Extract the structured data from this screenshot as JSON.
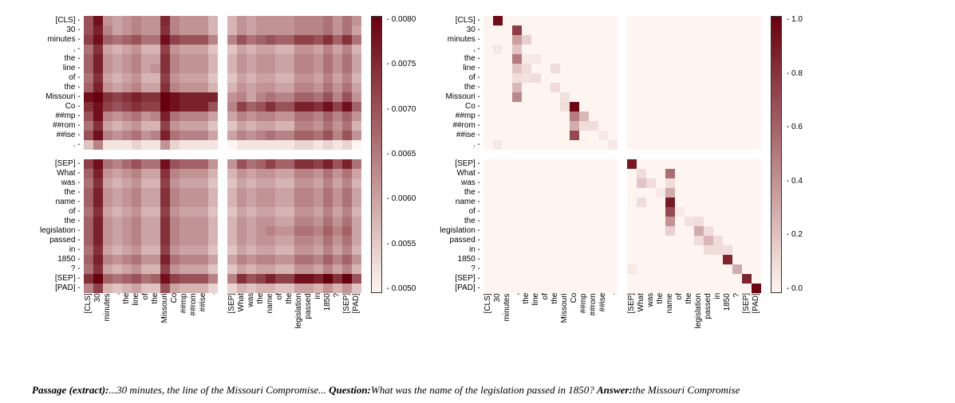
{
  "tokens": [
    "[CLS]",
    "30",
    "minutes",
    ",",
    "the",
    "line",
    "of",
    "the",
    "Missouri",
    "Co",
    "##mp",
    "##rom",
    "##ise",
    ".",
    "[SEP]",
    "What",
    "was",
    "the",
    "name",
    "of",
    "the",
    "legislation",
    "passed",
    "in",
    "1850",
    "?",
    "[SEP]",
    "[PAD]"
  ],
  "blank_after_index": [
    13
  ],
  "left_heatmap": {
    "cmap_low": "#fef5f0",
    "cmap_high": "#67000d",
    "vmin": 0.005,
    "vmax": 0.008,
    "colorbar_ticks": [
      "0.0080",
      "0.0075",
      "0.0070",
      "0.0065",
      "0.0060",
      "0.0055",
      "0.0050"
    ],
    "data": [
      [
        0.007,
        0.0078,
        0.0062,
        0.006,
        0.0062,
        0.0064,
        0.0062,
        0.0062,
        0.0075,
        0.0064,
        0.0062,
        0.0062,
        0.0062,
        0.0058,
        0.0058,
        0.0062,
        0.006,
        0.0062,
        0.0062,
        0.0062,
        0.0062,
        0.0064,
        0.0064,
        0.0064,
        0.0066,
        0.0062,
        0.0066,
        0.0062
      ],
      [
        0.007,
        0.0076,
        0.0064,
        0.006,
        0.0062,
        0.0064,
        0.0062,
        0.0062,
        0.0074,
        0.0064,
        0.0062,
        0.0062,
        0.0062,
        0.0058,
        0.0058,
        0.0062,
        0.006,
        0.0062,
        0.0062,
        0.0062,
        0.0062,
        0.0064,
        0.0064,
        0.0064,
        0.0066,
        0.0062,
        0.0066,
        0.006
      ],
      [
        0.0072,
        0.0078,
        0.0068,
        0.0066,
        0.0068,
        0.007,
        0.0066,
        0.0066,
        0.0078,
        0.0072,
        0.007,
        0.007,
        0.007,
        0.0064,
        0.0064,
        0.007,
        0.0066,
        0.0068,
        0.007,
        0.0068,
        0.0068,
        0.0072,
        0.0072,
        0.007,
        0.0074,
        0.0068,
        0.0074,
        0.0066
      ],
      [
        0.0066,
        0.0074,
        0.006,
        0.0058,
        0.006,
        0.0062,
        0.0058,
        0.0058,
        0.0072,
        0.0062,
        0.006,
        0.006,
        0.006,
        0.0056,
        0.0056,
        0.006,
        0.0058,
        0.006,
        0.006,
        0.0058,
        0.0058,
        0.0062,
        0.0062,
        0.006,
        0.0064,
        0.006,
        0.0064,
        0.0058
      ],
      [
        0.0068,
        0.0076,
        0.0062,
        0.006,
        0.0062,
        0.0064,
        0.006,
        0.006,
        0.0074,
        0.0064,
        0.0062,
        0.0062,
        0.0062,
        0.0058,
        0.0058,
        0.0062,
        0.006,
        0.0062,
        0.0062,
        0.006,
        0.006,
        0.0064,
        0.0064,
        0.0062,
        0.0066,
        0.0062,
        0.0066,
        0.006
      ],
      [
        0.0068,
        0.0076,
        0.0062,
        0.006,
        0.0062,
        0.0064,
        0.006,
        0.0062,
        0.0074,
        0.0064,
        0.0062,
        0.0062,
        0.0062,
        0.0058,
        0.0058,
        0.0062,
        0.006,
        0.0062,
        0.0062,
        0.006,
        0.006,
        0.0064,
        0.0064,
        0.0062,
        0.0066,
        0.0062,
        0.0066,
        0.006
      ],
      [
        0.0066,
        0.0074,
        0.006,
        0.0058,
        0.006,
        0.0062,
        0.0058,
        0.0058,
        0.0072,
        0.0062,
        0.006,
        0.006,
        0.006,
        0.0056,
        0.0056,
        0.006,
        0.0058,
        0.006,
        0.006,
        0.0058,
        0.0058,
        0.0062,
        0.0062,
        0.006,
        0.0064,
        0.006,
        0.0064,
        0.0058
      ],
      [
        0.0068,
        0.0076,
        0.0062,
        0.006,
        0.0062,
        0.0064,
        0.006,
        0.006,
        0.0074,
        0.0064,
        0.0062,
        0.0062,
        0.0062,
        0.0058,
        0.0058,
        0.0062,
        0.006,
        0.0062,
        0.0062,
        0.006,
        0.006,
        0.0064,
        0.0064,
        0.0062,
        0.0066,
        0.0062,
        0.0066,
        0.006
      ],
      [
        0.0078,
        0.008,
        0.0074,
        0.0072,
        0.0074,
        0.0076,
        0.0074,
        0.0074,
        0.008,
        0.0078,
        0.0076,
        0.0076,
        0.0076,
        0.0076,
        0.0062,
        0.0064,
        0.006,
        0.0064,
        0.0066,
        0.0064,
        0.0064,
        0.0068,
        0.0068,
        0.0066,
        0.007,
        0.0064,
        0.007,
        0.0062
      ],
      [
        0.0074,
        0.0078,
        0.0072,
        0.007,
        0.0072,
        0.0074,
        0.0072,
        0.0072,
        0.008,
        0.0078,
        0.0076,
        0.0076,
        0.0076,
        0.007,
        0.0064,
        0.0072,
        0.0068,
        0.007,
        0.0074,
        0.007,
        0.007,
        0.0076,
        0.0076,
        0.0074,
        0.0078,
        0.0072,
        0.0078,
        0.0068
      ],
      [
        0.007,
        0.0078,
        0.0064,
        0.0062,
        0.0064,
        0.0066,
        0.0062,
        0.0064,
        0.0076,
        0.0066,
        0.0064,
        0.0064,
        0.0064,
        0.006,
        0.006,
        0.0064,
        0.0062,
        0.0064,
        0.0064,
        0.0062,
        0.0062,
        0.0066,
        0.0066,
        0.0064,
        0.0068,
        0.0064,
        0.0068,
        0.0062
      ],
      [
        0.0066,
        0.0074,
        0.006,
        0.0058,
        0.006,
        0.0062,
        0.0058,
        0.0058,
        0.0072,
        0.0062,
        0.006,
        0.006,
        0.006,
        0.0056,
        0.0056,
        0.006,
        0.0058,
        0.006,
        0.006,
        0.0058,
        0.0058,
        0.0064,
        0.0064,
        0.0062,
        0.0066,
        0.0062,
        0.0066,
        0.0058
      ],
      [
        0.007,
        0.0078,
        0.0064,
        0.0062,
        0.0064,
        0.0066,
        0.0062,
        0.0064,
        0.0076,
        0.0066,
        0.0064,
        0.0064,
        0.0064,
        0.006,
        0.006,
        0.0064,
        0.0062,
        0.0064,
        0.0066,
        0.0064,
        0.0064,
        0.0068,
        0.0068,
        0.0066,
        0.007,
        0.0064,
        0.007,
        0.0062
      ],
      [
        0.0056,
        0.0064,
        0.0052,
        0.0052,
        0.0052,
        0.0054,
        0.0052,
        0.0052,
        0.0062,
        0.0054,
        0.0052,
        0.0052,
        0.0052,
        0.0052,
        0.005,
        0.0052,
        0.0052,
        0.0052,
        0.0052,
        0.0052,
        0.0052,
        0.0054,
        0.0054,
        0.0052,
        0.0054,
        0.0052,
        0.0054,
        0.005
      ],
      [
        0.0072,
        0.0078,
        0.0066,
        0.0064,
        0.0067,
        0.007,
        0.0066,
        0.0066,
        0.0078,
        0.007,
        0.0068,
        0.0068,
        0.0068,
        0.0062,
        0.0062,
        0.007,
        0.0066,
        0.0068,
        0.0072,
        0.0068,
        0.0068,
        0.0074,
        0.0074,
        0.0072,
        0.0076,
        0.007,
        0.0076,
        0.0066
      ],
      [
        0.0068,
        0.0076,
        0.0062,
        0.006,
        0.0062,
        0.0064,
        0.006,
        0.006,
        0.0074,
        0.0064,
        0.0062,
        0.0062,
        0.0062,
        0.0058,
        0.0058,
        0.0062,
        0.006,
        0.0062,
        0.0062,
        0.006,
        0.006,
        0.0064,
        0.0064,
        0.0062,
        0.0066,
        0.0062,
        0.0066,
        0.006
      ],
      [
        0.0066,
        0.0074,
        0.006,
        0.0058,
        0.006,
        0.0062,
        0.0058,
        0.0058,
        0.0072,
        0.0062,
        0.006,
        0.006,
        0.006,
        0.0056,
        0.0056,
        0.006,
        0.0058,
        0.006,
        0.006,
        0.0058,
        0.0058,
        0.0062,
        0.0062,
        0.006,
        0.0064,
        0.006,
        0.0064,
        0.0058
      ],
      [
        0.0068,
        0.0076,
        0.0062,
        0.006,
        0.0062,
        0.0064,
        0.006,
        0.006,
        0.0074,
        0.0064,
        0.0062,
        0.0062,
        0.0062,
        0.0058,
        0.0058,
        0.0062,
        0.006,
        0.0062,
        0.0062,
        0.006,
        0.006,
        0.0064,
        0.0064,
        0.0062,
        0.0066,
        0.0062,
        0.0066,
        0.006
      ],
      [
        0.0068,
        0.0076,
        0.0062,
        0.006,
        0.0062,
        0.0064,
        0.006,
        0.006,
        0.0074,
        0.0064,
        0.0062,
        0.0062,
        0.0062,
        0.0058,
        0.0058,
        0.0062,
        0.006,
        0.0062,
        0.0062,
        0.006,
        0.006,
        0.0064,
        0.0064,
        0.0062,
        0.0066,
        0.0062,
        0.0066,
        0.006
      ],
      [
        0.0066,
        0.0074,
        0.006,
        0.0058,
        0.006,
        0.0062,
        0.0058,
        0.0058,
        0.0072,
        0.0062,
        0.006,
        0.006,
        0.006,
        0.0056,
        0.0056,
        0.006,
        0.0058,
        0.006,
        0.006,
        0.0058,
        0.0058,
        0.0062,
        0.0062,
        0.006,
        0.0064,
        0.006,
        0.0064,
        0.0058
      ],
      [
        0.0068,
        0.0076,
        0.0062,
        0.006,
        0.0062,
        0.0064,
        0.006,
        0.006,
        0.0074,
        0.0064,
        0.0062,
        0.0062,
        0.0062,
        0.0058,
        0.0058,
        0.0062,
        0.006,
        0.0062,
        0.0062,
        0.006,
        0.006,
        0.0064,
        0.0064,
        0.0062,
        0.0066,
        0.0062,
        0.0066,
        0.006
      ],
      [
        0.0068,
        0.0076,
        0.0062,
        0.006,
        0.0062,
        0.0064,
        0.006,
        0.006,
        0.0074,
        0.0064,
        0.0062,
        0.0062,
        0.0062,
        0.0058,
        0.0058,
        0.0062,
        0.006,
        0.0062,
        0.0064,
        0.0062,
        0.0062,
        0.0066,
        0.0066,
        0.0064,
        0.0068,
        0.0064,
        0.0068,
        0.006
      ],
      [
        0.0068,
        0.0076,
        0.0062,
        0.006,
        0.0062,
        0.0064,
        0.006,
        0.006,
        0.0074,
        0.0064,
        0.0062,
        0.0062,
        0.0062,
        0.0058,
        0.0058,
        0.0062,
        0.006,
        0.0062,
        0.0062,
        0.006,
        0.006,
        0.0064,
        0.0064,
        0.0062,
        0.0066,
        0.0062,
        0.0066,
        0.006
      ],
      [
        0.0066,
        0.0074,
        0.006,
        0.0058,
        0.006,
        0.0062,
        0.0058,
        0.0058,
        0.0072,
        0.0062,
        0.006,
        0.006,
        0.006,
        0.0056,
        0.0056,
        0.006,
        0.0058,
        0.006,
        0.006,
        0.0058,
        0.0058,
        0.0062,
        0.0062,
        0.006,
        0.0064,
        0.006,
        0.0064,
        0.0058
      ],
      [
        0.0068,
        0.0076,
        0.0064,
        0.0062,
        0.0064,
        0.0066,
        0.0062,
        0.0062,
        0.0076,
        0.0066,
        0.0064,
        0.0064,
        0.0064,
        0.006,
        0.006,
        0.0064,
        0.0062,
        0.0064,
        0.0064,
        0.0062,
        0.0062,
        0.0066,
        0.0066,
        0.0064,
        0.0068,
        0.0064,
        0.0068,
        0.0062
      ],
      [
        0.0066,
        0.0074,
        0.006,
        0.0058,
        0.006,
        0.0062,
        0.0058,
        0.0058,
        0.0072,
        0.0062,
        0.006,
        0.006,
        0.006,
        0.0056,
        0.0056,
        0.006,
        0.0058,
        0.006,
        0.006,
        0.0058,
        0.0058,
        0.0062,
        0.0062,
        0.006,
        0.0064,
        0.006,
        0.0064,
        0.0058
      ],
      [
        0.0074,
        0.008,
        0.0068,
        0.0066,
        0.0068,
        0.007,
        0.0066,
        0.0068,
        0.0078,
        0.0072,
        0.007,
        0.007,
        0.007,
        0.0064,
        0.0064,
        0.0074,
        0.007,
        0.0072,
        0.0076,
        0.0072,
        0.0072,
        0.0078,
        0.0078,
        0.0076,
        0.008,
        0.0074,
        0.008,
        0.007
      ],
      [
        0.0064,
        0.0072,
        0.0058,
        0.0056,
        0.0058,
        0.006,
        0.0056,
        0.0056,
        0.007,
        0.006,
        0.0058,
        0.0058,
        0.0058,
        0.0054,
        0.0054,
        0.0058,
        0.0056,
        0.0058,
        0.0058,
        0.0056,
        0.0056,
        0.006,
        0.006,
        0.0058,
        0.0062,
        0.0058,
        0.0062,
        0.0056
      ]
    ]
  },
  "right_heatmap": {
    "cmap_low": "#fff5f0",
    "cmap_high": "#67000d",
    "vmin": 0.0,
    "vmax": 1.0,
    "colorbar_ticks": [
      "1.0",
      "0.8",
      "0.6",
      "0.4",
      "0.2",
      "0.0"
    ],
    "sparse_cells": [
      {
        "r": 0,
        "c": 0,
        "v": 0.01
      },
      {
        "r": 0,
        "c": 1,
        "v": 0.95
      },
      {
        "r": 1,
        "c": 3,
        "v": 0.75
      },
      {
        "r": 2,
        "c": 3,
        "v": 0.35
      },
      {
        "r": 2,
        "c": 4,
        "v": 0.15
      },
      {
        "r": 3,
        "c": 1,
        "v": 0.05
      },
      {
        "r": 3,
        "c": 3,
        "v": 0.2
      },
      {
        "r": 4,
        "c": 3,
        "v": 0.5
      },
      {
        "r": 4,
        "c": 4,
        "v": 0.05
      },
      {
        "r": 4,
        "c": 5,
        "v": 0.05
      },
      {
        "r": 5,
        "c": 3,
        "v": 0.2
      },
      {
        "r": 5,
        "c": 4,
        "v": 0.1
      },
      {
        "r": 5,
        "c": 7,
        "v": 0.1
      },
      {
        "r": 6,
        "c": 3,
        "v": 0.1
      },
      {
        "r": 6,
        "c": 4,
        "v": 0.08
      },
      {
        "r": 6,
        "c": 5,
        "v": 0.1
      },
      {
        "r": 7,
        "c": 3,
        "v": 0.25
      },
      {
        "r": 7,
        "c": 7,
        "v": 0.1
      },
      {
        "r": 8,
        "c": 3,
        "v": 0.45
      },
      {
        "r": 8,
        "c": 8,
        "v": 0.08
      },
      {
        "r": 9,
        "c": 8,
        "v": 0.1
      },
      {
        "r": 9,
        "c": 9,
        "v": 0.98
      },
      {
        "r": 10,
        "c": 9,
        "v": 0.5
      },
      {
        "r": 10,
        "c": 10,
        "v": 0.25
      },
      {
        "r": 11,
        "c": 9,
        "v": 0.3
      },
      {
        "r": 11,
        "c": 10,
        "v": 0.1
      },
      {
        "r": 11,
        "c": 11,
        "v": 0.1
      },
      {
        "r": 12,
        "c": 9,
        "v": 0.7
      },
      {
        "r": 12,
        "c": 12,
        "v": 0.05
      },
      {
        "r": 13,
        "c": 1,
        "v": 0.05
      },
      {
        "r": 13,
        "c": 13,
        "v": 0.05
      },
      {
        "r": 14,
        "c": 14,
        "v": 0.9
      },
      {
        "r": 15,
        "c": 15,
        "v": 0.1
      },
      {
        "r": 15,
        "c": 18,
        "v": 0.55
      },
      {
        "r": 16,
        "c": 15,
        "v": 0.2
      },
      {
        "r": 16,
        "c": 16,
        "v": 0.1
      },
      {
        "r": 16,
        "c": 18,
        "v": 0.1
      },
      {
        "r": 17,
        "c": 17,
        "v": 0.05
      },
      {
        "r": 17,
        "c": 18,
        "v": 0.3
      },
      {
        "r": 18,
        "c": 15,
        "v": 0.1
      },
      {
        "r": 18,
        "c": 18,
        "v": 0.9
      },
      {
        "r": 19,
        "c": 18,
        "v": 0.7
      },
      {
        "r": 19,
        "c": 19,
        "v": 0.05
      },
      {
        "r": 20,
        "c": 18,
        "v": 0.4
      },
      {
        "r": 20,
        "c": 20,
        "v": 0.08
      },
      {
        "r": 20,
        "c": 21,
        "v": 0.1
      },
      {
        "r": 21,
        "c": 18,
        "v": 0.15
      },
      {
        "r": 21,
        "c": 21,
        "v": 0.3
      },
      {
        "r": 21,
        "c": 22,
        "v": 0.1
      },
      {
        "r": 22,
        "c": 21,
        "v": 0.1
      },
      {
        "r": 22,
        "c": 22,
        "v": 0.25
      },
      {
        "r": 22,
        "c": 23,
        "v": 0.1
      },
      {
        "r": 23,
        "c": 22,
        "v": 0.1
      },
      {
        "r": 23,
        "c": 23,
        "v": 0.1
      },
      {
        "r": 23,
        "c": 24,
        "v": 0.1
      },
      {
        "r": 24,
        "c": 24,
        "v": 0.85
      },
      {
        "r": 25,
        "c": 14,
        "v": 0.05
      },
      {
        "r": 25,
        "c": 25,
        "v": 0.3
      },
      {
        "r": 26,
        "c": 26,
        "v": 0.85
      },
      {
        "r": 27,
        "c": 27,
        "v": 0.98
      }
    ]
  },
  "caption": {
    "passage_label": "Passage (extract):",
    "passage_text": "...30 minutes, the line of the Missouri Compromise... ",
    "question_label": "Question:",
    "question_text": "What was the name of the legislation passed in 1850? ",
    "answer_label": "Answer:",
    "answer_text": "the Missouri Compromise"
  }
}
